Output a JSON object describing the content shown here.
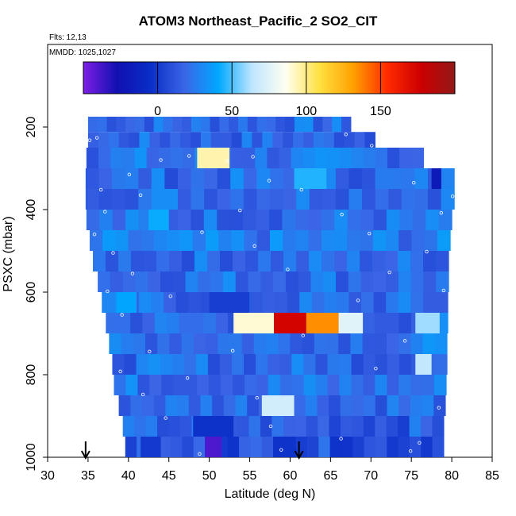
{
  "figure": {
    "title": "ATOM3 Northeast_Pacific_2 SO2_CIT",
    "flights_note": "Flts: 12,13",
    "date_note": "MMDD: 1025,1027"
  },
  "chart_data": {
    "type": "heatmap",
    "title": "ATOM3 Northeast_Pacific_2 SO2_CIT",
    "xlabel": "Latitude (deg N)",
    "ylabel": "PSXC (mbar)",
    "xlim": [
      30,
      85
    ],
    "ylim": [
      1000,
      0
    ],
    "x_ticks": [
      30,
      35,
      40,
      45,
      50,
      55,
      60,
      65,
      70,
      75,
      80,
      85
    ],
    "y_ticks": [
      200,
      400,
      600,
      800,
      1000
    ],
    "colorbar": {
      "range": [
        -50,
        200
      ],
      "ticks": [
        0,
        50,
        100,
        150
      ],
      "colors": [
        "#7e1ee6",
        "#1010b0",
        "#0a2ec8",
        "#3a66e6",
        "#00a8ff",
        "#bfe6ff",
        "#fffff0",
        "#ffe040",
        "#ffa000",
        "#ff2a00",
        "#cc0000",
        "#941818"
      ]
    },
    "background_value": 22,
    "layers": [
      {
        "p_top": 175,
        "p_bot": 212,
        "lat_min": 35.0,
        "lat_max": 67.5,
        "value": 20
      },
      {
        "p_top": 212,
        "p_bot": 250,
        "lat_min": 35.0,
        "lat_max": 70.5,
        "value": 18
      },
      {
        "p_top": 250,
        "p_bot": 300,
        "lat_min": 34.8,
        "lat_max": 76.5,
        "value": 22
      },
      {
        "p_top": 300,
        "p_bot": 350,
        "lat_min": 34.7,
        "lat_max": 80.3,
        "value": 20
      },
      {
        "p_top": 350,
        "p_bot": 400,
        "lat_min": 34.7,
        "lat_max": 80.3,
        "value": 23
      },
      {
        "p_top": 400,
        "p_bot": 450,
        "lat_min": 34.8,
        "lat_max": 80.0,
        "value": 21
      },
      {
        "p_top": 450,
        "p_bot": 500,
        "lat_min": 35.2,
        "lat_max": 79.8,
        "value": 24
      },
      {
        "p_top": 500,
        "p_bot": 550,
        "lat_min": 35.6,
        "lat_max": 79.6,
        "value": 20
      },
      {
        "p_top": 550,
        "p_bot": 600,
        "lat_min": 36.2,
        "lat_max": 79.6,
        "value": 22
      },
      {
        "p_top": 600,
        "p_bot": 650,
        "lat_min": 36.7,
        "lat_max": 79.5,
        "value": 19
      },
      {
        "p_top": 650,
        "p_bot": 700,
        "lat_min": 37.2,
        "lat_max": 79.5,
        "value": 20
      },
      {
        "p_top": 700,
        "p_bot": 750,
        "lat_min": 37.6,
        "lat_max": 79.4,
        "value": 23
      },
      {
        "p_top": 750,
        "p_bot": 800,
        "lat_min": 38.0,
        "lat_max": 79.4,
        "value": 20
      },
      {
        "p_top": 800,
        "p_bot": 850,
        "lat_min": 38.2,
        "lat_max": 79.3,
        "value": 22
      },
      {
        "p_top": 850,
        "p_bot": 900,
        "lat_min": 38.8,
        "lat_max": 79.2,
        "value": 21
      },
      {
        "p_top": 900,
        "p_bot": 950,
        "lat_min": 39.3,
        "lat_max": 79.0,
        "value": 15
      },
      {
        "p_top": 950,
        "p_bot": 1000,
        "lat_min": 39.6,
        "lat_max": 79.0,
        "value": 10
      }
    ],
    "features": [
      {
        "p_top": 250,
        "p_bot": 300,
        "lat_min": 48.5,
        "lat_max": 52.5,
        "value": 95
      },
      {
        "p_top": 650,
        "p_bot": 700,
        "lat_min": 53.0,
        "lat_max": 58.0,
        "value": 90
      },
      {
        "p_top": 650,
        "p_bot": 700,
        "lat_min": 58.0,
        "lat_max": 62.0,
        "value": 175
      },
      {
        "p_top": 650,
        "p_bot": 700,
        "lat_min": 62.0,
        "lat_max": 66.0,
        "value": 135
      },
      {
        "p_top": 650,
        "p_bot": 700,
        "lat_min": 66.0,
        "lat_max": 69.0,
        "value": 75
      },
      {
        "p_top": 650,
        "p_bot": 700,
        "lat_min": 75.5,
        "lat_max": 78.5,
        "value": 60
      },
      {
        "p_top": 750,
        "p_bot": 800,
        "lat_min": 75.5,
        "lat_max": 77.5,
        "value": 65
      },
      {
        "p_top": 850,
        "p_bot": 900,
        "lat_min": 56.5,
        "lat_max": 60.5,
        "value": 70
      },
      {
        "p_top": 300,
        "p_bot": 350,
        "lat_min": 60.5,
        "lat_max": 64.5,
        "value": 45
      },
      {
        "p_top": 400,
        "p_bot": 450,
        "lat_min": 42.5,
        "lat_max": 45.0,
        "value": 42
      },
      {
        "p_top": 600,
        "p_bot": 650,
        "lat_min": 38.5,
        "lat_max": 41.0,
        "value": 40
      },
      {
        "p_top": 950,
        "p_bot": 1000,
        "lat_min": 49.5,
        "lat_max": 51.5,
        "value": -40
      },
      {
        "p_top": 950,
        "p_bot": 1000,
        "lat_min": 41.5,
        "lat_max": 44.0,
        "value": 0
      },
      {
        "p_top": 900,
        "p_bot": 950,
        "lat_min": 48.0,
        "lat_max": 53.0,
        "value": -3
      },
      {
        "p_top": 300,
        "p_bot": 350,
        "lat_min": 77.5,
        "lat_max": 78.7,
        "value": -20
      },
      {
        "p_top": 600,
        "p_bot": 650,
        "lat_min": 50.0,
        "lat_max": 55.0,
        "value": 2
      }
    ],
    "sample_points": [
      [
        35.2,
        232
      ],
      [
        36.1,
        226
      ],
      [
        66.9,
        218
      ],
      [
        70.1,
        245
      ],
      [
        44.0,
        280
      ],
      [
        47.5,
        270
      ],
      [
        52.2,
        282
      ],
      [
        55.4,
        272
      ],
      [
        40.1,
        315
      ],
      [
        57.4,
        330
      ],
      [
        75.3,
        335
      ],
      [
        36.6,
        352
      ],
      [
        80.1,
        368
      ],
      [
        41.5,
        365
      ],
      [
        61.4,
        352
      ],
      [
        37.1,
        405
      ],
      [
        53.8,
        402
      ],
      [
        66.4,
        412
      ],
      [
        78.7,
        408
      ],
      [
        35.8,
        460
      ],
      [
        49.1,
        455
      ],
      [
        69.8,
        458
      ],
      [
        38.1,
        505
      ],
      [
        55.6,
        488
      ],
      [
        76.9,
        502
      ],
      [
        40.5,
        555
      ],
      [
        59.7,
        545
      ],
      [
        72.3,
        552
      ],
      [
        37.4,
        598
      ],
      [
        45.2,
        610
      ],
      [
        68.4,
        620
      ],
      [
        79.0,
        596
      ],
      [
        39.2,
        655
      ],
      [
        61.6,
        705
      ],
      [
        74.2,
        718
      ],
      [
        42.6,
        744
      ],
      [
        52.9,
        742
      ],
      [
        39.0,
        792
      ],
      [
        47.3,
        808
      ],
      [
        70.6,
        785
      ],
      [
        41.8,
        848
      ],
      [
        55.9,
        856
      ],
      [
        78.4,
        880
      ],
      [
        44.6,
        905
      ],
      [
        57.6,
        925
      ],
      [
        76.0,
        965
      ],
      [
        58.9,
        982
      ],
      [
        48.8,
        992
      ],
      [
        74.9,
        985
      ],
      [
        66.3,
        955
      ]
    ],
    "arrow_markers_lat": [
      34.7,
      61.1
    ]
  }
}
